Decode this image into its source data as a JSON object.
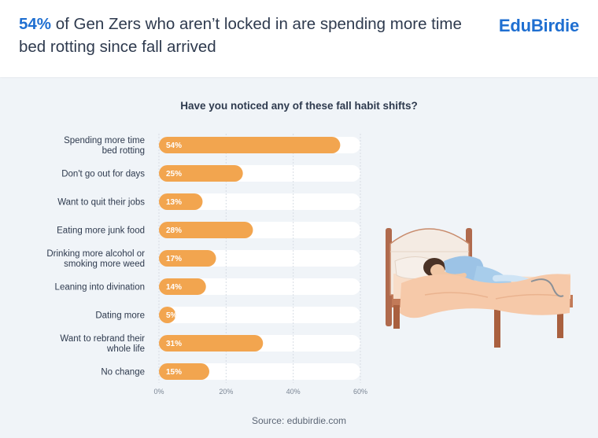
{
  "header": {
    "highlight": "54%",
    "headline_rest": " of Gen Zers who aren’t locked in are spending more time bed rotting since fall arrived",
    "logo": "EduBirdie"
  },
  "footer": {
    "source": "Source: edubirdie.com"
  },
  "colors": {
    "bar": "#f2a54f",
    "track": "#ffffff",
    "accent": "#1f6fd1",
    "text": "#2e3a4e"
  },
  "chart_data": {
    "type": "bar",
    "orientation": "horizontal",
    "title": "Have you noticed any of these fall habit shifts?",
    "categories": [
      [
        "Spending more time",
        "bed rotting"
      ],
      [
        "Don't go out for days"
      ],
      [
        "Want to quit their jobs"
      ],
      [
        "Eating more junk food"
      ],
      [
        "Drinking more alcohol or",
        "smoking more weed"
      ],
      [
        "Leaning into divination"
      ],
      [
        "Dating more"
      ],
      [
        "Want to rebrand their",
        "whole life"
      ],
      [
        "No change"
      ]
    ],
    "values": [
      54,
      25,
      13,
      28,
      17,
      14,
      5,
      31,
      15
    ],
    "value_labels": [
      "54%",
      "25%",
      "13%",
      "28%",
      "17%",
      "14%",
      "5%",
      "31%",
      "15%"
    ],
    "xticks": [
      "0%",
      "20%",
      "40%",
      "60%"
    ],
    "xlim": [
      0,
      60
    ],
    "grid": true
  }
}
